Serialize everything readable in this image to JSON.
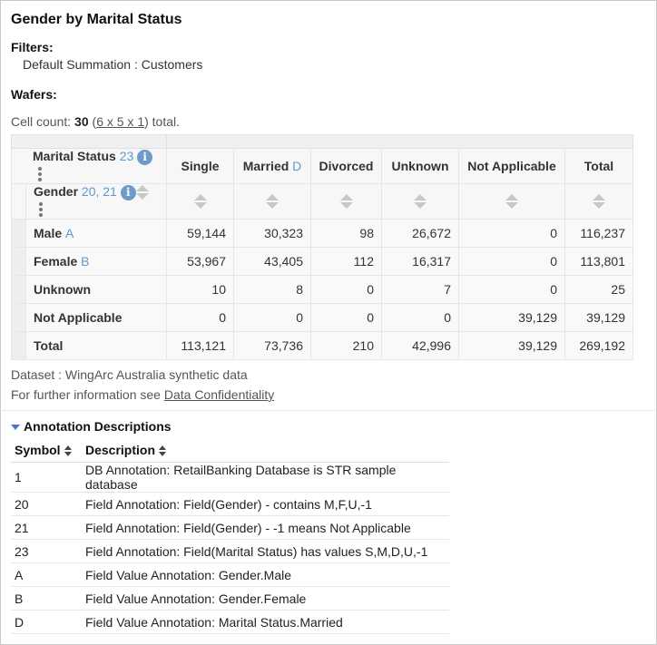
{
  "title": "Gender by Marital Status",
  "filters_label": "Filters:",
  "filter_text": "Default Summation : Customers",
  "wafers_label": "Wafers:",
  "cell_count": {
    "prefix": "Cell count: ",
    "count": "30",
    "open": " (",
    "dims": "6 x 5 x 1",
    "suffix": ") total."
  },
  "crosstab": {
    "column_field": {
      "label": "Marital Status",
      "annotation": "23"
    },
    "row_field": {
      "label": "Gender",
      "annotation": "20, 21"
    },
    "columns": [
      {
        "label": "Single",
        "annotation": ""
      },
      {
        "label": "Married",
        "annotation": "D"
      },
      {
        "label": "Divorced",
        "annotation": ""
      },
      {
        "label": "Unknown",
        "annotation": ""
      },
      {
        "label": "Not Applicable",
        "annotation": ""
      },
      {
        "label": "Total",
        "annotation": ""
      }
    ],
    "rows": [
      {
        "label": "Male",
        "annotation": "A",
        "values": [
          "59,144",
          "30,323",
          "98",
          "26,672",
          "0",
          "116,237"
        ]
      },
      {
        "label": "Female",
        "annotation": "B",
        "values": [
          "53,967",
          "43,405",
          "112",
          "16,317",
          "0",
          "113,801"
        ]
      },
      {
        "label": "Unknown",
        "annotation": "",
        "values": [
          "10",
          "8",
          "0",
          "7",
          "0",
          "25"
        ]
      },
      {
        "label": "Not Applicable",
        "annotation": "",
        "values": [
          "0",
          "0",
          "0",
          "0",
          "39,129",
          "39,129"
        ]
      },
      {
        "label": "Total",
        "annotation": "",
        "values": [
          "113,121",
          "73,736",
          "210",
          "42,996",
          "39,129",
          "269,192"
        ]
      }
    ]
  },
  "dataset_text": "Dataset : WingArc Australia synthetic data",
  "info_prefix": "For further information see ",
  "info_link": "Data Confidentiality",
  "annotations": {
    "heading": "Annotation Descriptions",
    "col_symbol": "Symbol",
    "col_description": "Description",
    "rows": [
      {
        "symbol": "1",
        "description": "DB Annotation: RetailBanking Database is STR sample database"
      },
      {
        "symbol": "20",
        "description": "Field Annotation: Field(Gender) - contains M,F,U,-1"
      },
      {
        "symbol": "21",
        "description": "Field Annotation: Field(Gender) - -1 means Not Applicable"
      },
      {
        "symbol": "23",
        "description": "Field Annotation: Field(Marital Status) has values S,M,D,U,-1"
      },
      {
        "symbol": "A",
        "description": "Field Value Annotation: Gender.Male"
      },
      {
        "symbol": "B",
        "description": "Field Value Annotation: Gender.Female"
      },
      {
        "symbol": "D",
        "description": "Field Value Annotation: Marital Status.Married"
      }
    ]
  },
  "colors": {
    "annotation": "#5b9bd5",
    "info_icon": "#6f9bc8",
    "toggle": "#4a74c9"
  },
  "icons": {
    "info": "info-icon",
    "menu": "kebab-menu-icon",
    "sort": "sort-icon",
    "collapse": "triangle-down-icon"
  }
}
